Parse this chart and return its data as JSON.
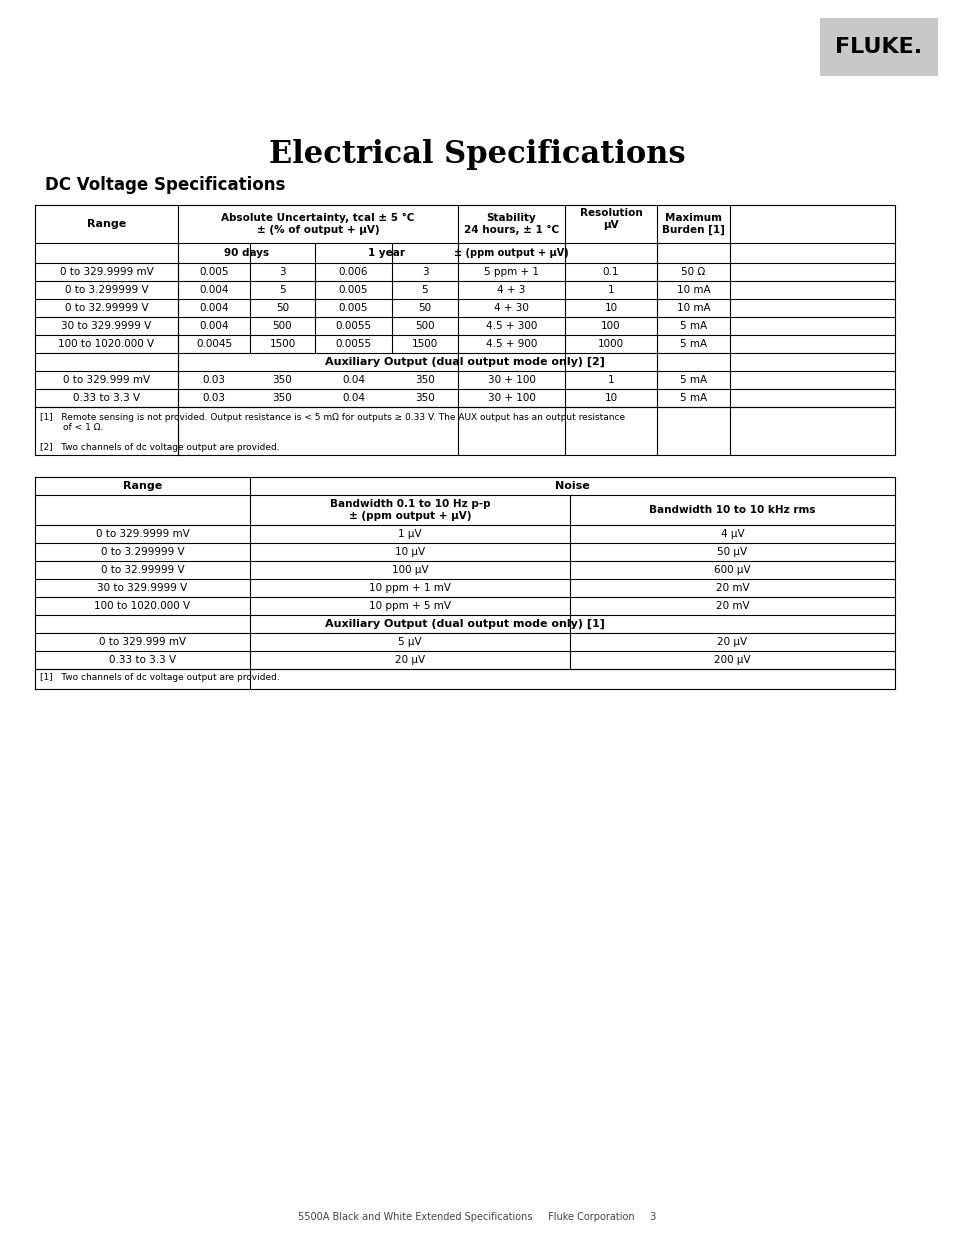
{
  "title": "Electrical Specifications",
  "section1_title": "DC Voltage Specifications",
  "page_footer": "5500A Black and White Extended Specifications     Fluke Corporation     3",
  "fluke_logo": "FLUKE.",
  "table1": {
    "col_headers": [
      "Range",
      "Absolute Uncertainty, tcal ± 5 °C\n± (% of output + μV)",
      "Stability\n24 hours, ± 1 °C",
      "Resolution\nμV",
      "Maximum\nBurden [1]"
    ],
    "subheaders": [
      "90 days",
      "1 year",
      "± (ppm output + μV)"
    ],
    "data_rows": [
      [
        "0 to 329.9999 mV",
        "0.005",
        "3",
        "0.006",
        "3",
        "5 ppm + 1",
        "0.1",
        "50 Ω"
      ],
      [
        "0 to 3.299999 V",
        "0.004",
        "5",
        "0.005",
        "5",
        "4 + 3",
        "1",
        "10 mA"
      ],
      [
        "0 to 32.99999 V",
        "0.004",
        "50",
        "0.005",
        "50",
        "4 + 30",
        "10",
        "10 mA"
      ],
      [
        "30 to 329.9999 V",
        "0.004",
        "500",
        "0.0055",
        "500",
        "4.5 + 300",
        "100",
        "5 mA"
      ],
      [
        "100 to 1020.000 V",
        "0.0045",
        "1500",
        "0.0055",
        "1500",
        "4.5 + 900",
        "1000",
        "5 mA"
      ]
    ],
    "aux_header": "Auxiliary Output (dual output mode only) [2]",
    "aux_rows": [
      [
        "0 to 329.999 mV",
        "0.03",
        "350",
        "0.04",
        "350",
        "30 + 100",
        "1",
        "5 mA"
      ],
      [
        "0.33 to 3.3 V",
        "0.03",
        "350",
        "0.04",
        "350",
        "30 + 100",
        "10",
        "5 mA"
      ]
    ],
    "footnotes": [
      "[1]   Remote sensing is not provided. Output resistance is < 5 mΩ for outputs ≥ 0.33 V. The AUX output has an output resistance\n        of < 1 Ω.",
      "[2]   Two channels of dc voltage output are provided."
    ]
  },
  "table2": {
    "col_headers": [
      "Range",
      "Noise",
      ""
    ],
    "noise_subheaders": [
      "Bandwidth 0.1 to 10 Hz p-p\n± (ppm output + μV)",
      "Bandwidth 10 to 10 kHz rms"
    ],
    "data_rows": [
      [
        "0 to 329.9999 mV",
        "1 μV",
        "4 μV"
      ],
      [
        "0 to 3.299999 V",
        "10 μV",
        "50 μV"
      ],
      [
        "0 to 32.99999 V",
        "100 μV",
        "600 μV"
      ],
      [
        "30 to 329.9999 V",
        "10 ppm + 1 mV",
        "20 mV"
      ],
      [
        "100 to 1020.000 V",
        "10 ppm + 5 mV",
        "20 mV"
      ]
    ],
    "aux_header": "Auxiliary Output (dual output mode only) [1]",
    "aux_rows": [
      [
        "0 to 329.999 mV",
        "5 μV",
        "20 μV"
      ],
      [
        "0.33 to 3.3 V",
        "20 μV",
        "200 μV"
      ]
    ],
    "footnotes": [
      "[1]   Two channels of dc voltage output are provided."
    ]
  }
}
